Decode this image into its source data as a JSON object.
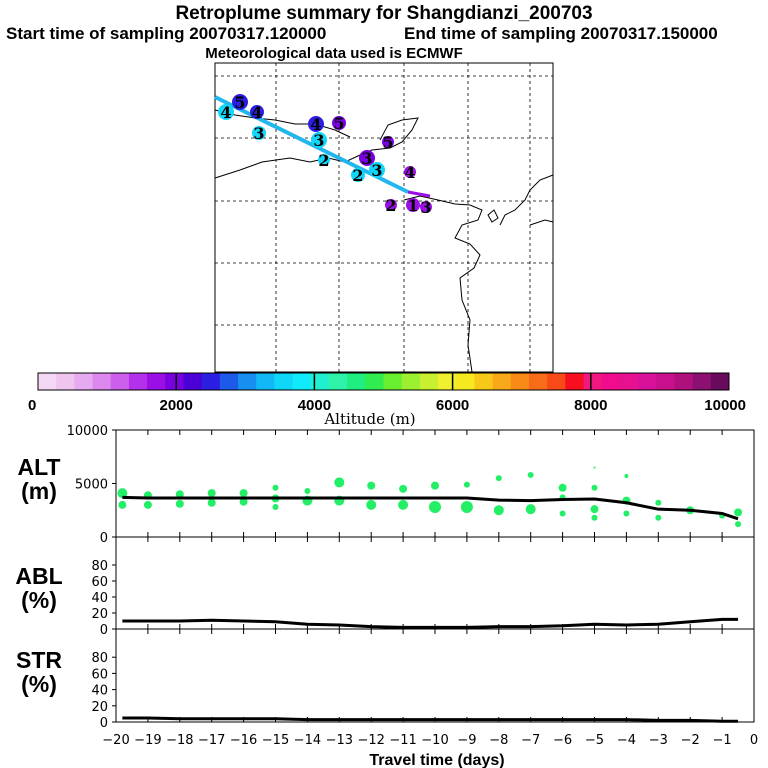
{
  "header": {
    "title": "Retroplume summary for Shangdianzi_200703",
    "start": "Start time of sampling 20070317.120000",
    "end": "End time of sampling 20070317.150000",
    "met": "Meteorological data used is ECMWF"
  },
  "colorbar": {
    "ticks": [
      "0",
      "2000",
      "4000",
      "6000",
      "8000",
      "10000"
    ],
    "label": "Altitude (m)",
    "colors": [
      "#f5d8f5",
      "#efc5f0",
      "#e6aaf0",
      "#dc88ee",
      "#cc5fec",
      "#b331ea",
      "#9a0fe6",
      "#7a00e0",
      "#4b00d8",
      "#2b1ee0",
      "#1e5aea",
      "#168ff0",
      "#12b7f5",
      "#10d6f8",
      "#10eafa",
      "#20f0d0",
      "#2df2a8",
      "#20ee80",
      "#30ec50",
      "#6aee30",
      "#9cf030",
      "#c8f030",
      "#eef030",
      "#f8e820",
      "#f8c818",
      "#f8a818",
      "#f88a18",
      "#f86c18",
      "#f84a18",
      "#f80e1e",
      "#f0187e",
      "#f00c8c",
      "#e61090",
      "#d8109a",
      "#c8108c",
      "#b0107c",
      "#8c1070",
      "#6a0a5c"
    ]
  },
  "map": {
    "trajectory_labels": [
      {
        "label": "5",
        "color": "#2b1ee0"
      },
      {
        "label": "4",
        "color": "#10d6f8"
      },
      {
        "label": "4",
        "color": "#2b1ee0"
      },
      {
        "label": "3",
        "color": "#10d6f8"
      },
      {
        "label": "4",
        "color": "#2b1ee0"
      },
      {
        "label": "5",
        "color": "#7a00e0"
      },
      {
        "label": "3",
        "color": "#10d6f8"
      },
      {
        "label": "2",
        "color": "#10d6f8"
      },
      {
        "label": "5",
        "color": "#7a00e0"
      },
      {
        "label": "3",
        "color": "#7a00e0"
      },
      {
        "label": "2",
        "color": "#10d6f8"
      },
      {
        "label": "3",
        "color": "#10d6f8"
      },
      {
        "label": "4",
        "color": "#9a0fe6"
      },
      {
        "label": "1",
        "color": "#9a0fe6"
      },
      {
        "label": "2",
        "color": "#9a0fe6"
      },
      {
        "label": "3",
        "color": "#9a0fe6"
      }
    ]
  },
  "chart_data": [
    {
      "type": "line",
      "name": "ALT",
      "title": "ALT (m)",
      "ylabel_lines": [
        "ALT",
        "(m)"
      ],
      "ylim": [
        0,
        10000
      ],
      "yticks": [
        "0",
        "5000",
        "10000"
      ],
      "xlim": [
        -20,
        0
      ],
      "series": [
        {
          "name": "mean altitude",
          "x": [
            -19.8,
            -19,
            -18,
            -17,
            -16,
            -15,
            -14,
            -13,
            -12,
            -11,
            -10,
            -9,
            -8,
            -7,
            -6,
            -5,
            -4,
            -3,
            -2,
            -1,
            -0.5
          ],
          "y": [
            3700,
            3650,
            3650,
            3650,
            3650,
            3650,
            3650,
            3650,
            3650,
            3650,
            3650,
            3650,
            3450,
            3400,
            3500,
            3550,
            3200,
            2600,
            2500,
            2200,
            1700
          ]
        }
      ],
      "scatter": {
        "color": "#22ee66",
        "points": [
          [
            -19.8,
            4100,
            5
          ],
          [
            -19.8,
            3000,
            4
          ],
          [
            -19,
            3900,
            4
          ],
          [
            -19,
            3000,
            4
          ],
          [
            -18,
            4000,
            4
          ],
          [
            -18,
            3100,
            4
          ],
          [
            -17,
            4100,
            4
          ],
          [
            -17,
            3200,
            4
          ],
          [
            -16,
            4100,
            4
          ],
          [
            -16,
            3300,
            4
          ],
          [
            -15,
            4600,
            3
          ],
          [
            -15,
            3600,
            4
          ],
          [
            -15,
            2800,
            3
          ],
          [
            -14,
            4300,
            3
          ],
          [
            -14,
            3400,
            5
          ],
          [
            -13,
            5100,
            5
          ],
          [
            -13,
            3400,
            5
          ],
          [
            -12,
            4800,
            4
          ],
          [
            -12,
            3000,
            5
          ],
          [
            -11,
            4500,
            4
          ],
          [
            -11,
            3000,
            5
          ],
          [
            -10,
            4800,
            4
          ],
          [
            -10,
            2800,
            6
          ],
          [
            -9,
            4900,
            3
          ],
          [
            -9,
            2800,
            6
          ],
          [
            -8,
            5500,
            3
          ],
          [
            -8,
            2500,
            5
          ],
          [
            -7,
            5800,
            3
          ],
          [
            -7,
            2600,
            5
          ],
          [
            -6,
            4600,
            4
          ],
          [
            -6,
            3700,
            3
          ],
          [
            -6,
            2200,
            3
          ],
          [
            -5,
            6500,
            1
          ],
          [
            -5,
            4600,
            3
          ],
          [
            -5,
            2600,
            4
          ],
          [
            -5,
            1800,
            3
          ],
          [
            -4,
            5700,
            2
          ],
          [
            -4,
            3400,
            4
          ],
          [
            -4,
            2200,
            3
          ],
          [
            -3,
            3200,
            3
          ],
          [
            -3,
            1800,
            3
          ],
          [
            -2,
            2500,
            4
          ],
          [
            -1,
            2000,
            3
          ],
          [
            -0.5,
            2300,
            4
          ],
          [
            -0.5,
            1200,
            3
          ]
        ]
      }
    },
    {
      "type": "line",
      "name": "ABL",
      "title": "ABL (%)",
      "ylabel_lines": [
        "ABL",
        "(%)"
      ],
      "ylim": [
        0,
        100
      ],
      "yticks": [
        "0",
        "20",
        "40",
        "60",
        "80"
      ],
      "xlim": [
        -20,
        0
      ],
      "series": [
        {
          "name": "ABL fraction",
          "x": [
            -19.8,
            -19,
            -18,
            -17,
            -16,
            -15,
            -14,
            -13,
            -12,
            -11,
            -10,
            -9,
            -8,
            -7,
            -6,
            -5,
            -4,
            -3,
            -2,
            -1,
            -0.5
          ],
          "y": [
            10,
            10,
            10,
            11,
            10,
            9,
            6,
            5,
            3,
            2,
            2,
            2,
            3,
            3,
            4,
            6,
            5,
            6,
            9,
            12,
            12
          ]
        }
      ]
    },
    {
      "type": "line",
      "name": "STR",
      "title": "STR (%)",
      "ylabel_lines": [
        "STR",
        "(%)"
      ],
      "ylim": [
        0,
        100
      ],
      "yticks": [
        "0",
        "20",
        "40",
        "60",
        "80"
      ],
      "xlim": [
        -20,
        0
      ],
      "xticks": [
        "−20",
        "−19",
        "−18",
        "−17",
        "−16",
        "−15",
        "−14",
        "−13",
        "−12",
        "−11",
        "−10",
        "−9",
        "−8",
        "−7",
        "−6",
        "−5",
        "−4",
        "−3",
        "−2",
        "−1",
        "0"
      ],
      "xlabel": "Travel time (days)",
      "series": [
        {
          "name": "stratospheric fraction",
          "x": [
            -19.8,
            -19,
            -18,
            -17,
            -16,
            -15,
            -14,
            -13,
            -12,
            -11,
            -10,
            -9,
            -8,
            -7,
            -6,
            -5,
            -4,
            -3,
            -2,
            -1,
            -0.5
          ],
          "y": [
            5,
            5,
            4,
            4,
            4,
            4,
            3,
            3,
            3,
            3,
            3,
            3,
            3,
            3,
            3,
            3,
            3,
            2,
            2,
            1,
            1
          ]
        }
      ]
    }
  ]
}
